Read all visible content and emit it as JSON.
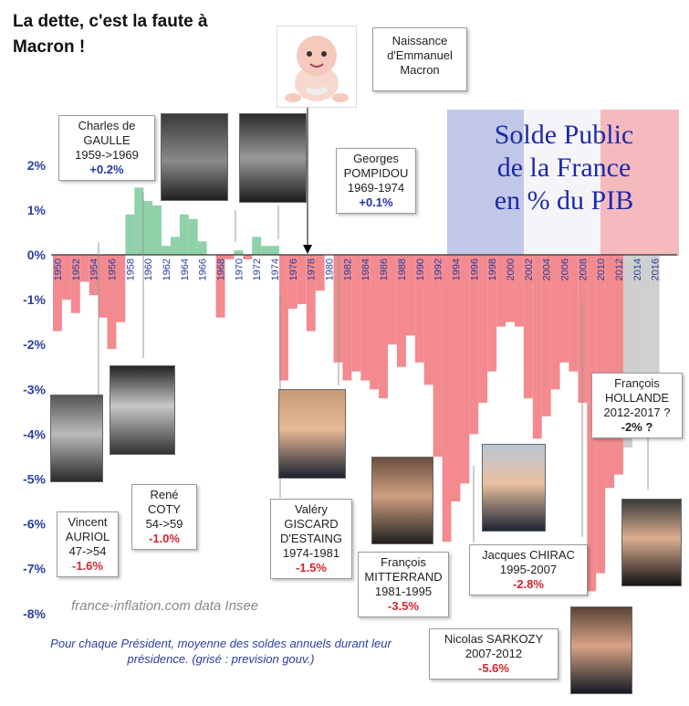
{
  "headline": "La dette, c'est la faute à Macron !",
  "flag_title": [
    "Solde Public",
    "de la France",
    "en % du PIB"
  ],
  "credit": "france-inflation.com  data Insee",
  "note": "Pour chaque Président, moyenne des soldes annuels durant leur présidence. (grisé : prevision gouv.)",
  "birth": {
    "lines": [
      "Naissance",
      "d'Emmanuel",
      "Macron"
    ],
    "year": 1977
  },
  "presidents": [
    {
      "id": "auriol",
      "lines": [
        "Vincent",
        "AURIOL",
        "47->54"
      ],
      "value": "-1.6%",
      "sign": "neg"
    },
    {
      "id": "coty",
      "lines": [
        "René",
        "COTY",
        "54->59"
      ],
      "value": "-1.0%",
      "sign": "neg"
    },
    {
      "id": "degaulle",
      "lines": [
        "Charles de",
        "GAULLE",
        "1959->1969"
      ],
      "value": "+0.2%",
      "sign": "pos"
    },
    {
      "id": "pompidou",
      "lines": [
        "Georges",
        "POMPIDOU",
        "1969-1974"
      ],
      "value": "+0.1%",
      "sign": "pos"
    },
    {
      "id": "giscard",
      "lines": [
        "Valéry",
        "GISCARD",
        "D'ESTAING",
        "1974-1981"
      ],
      "value": "-1.5%",
      "sign": "neg"
    },
    {
      "id": "mitterrand",
      "lines": [
        "François",
        "MITTERRAND",
        "1981-1995"
      ],
      "value": "-3.5%",
      "sign": "neg"
    },
    {
      "id": "chirac",
      "lines": [
        "Jacques CHIRAC",
        "1995-2007"
      ],
      "value": "-2.8%",
      "sign": "neg"
    },
    {
      "id": "sarkozy",
      "lines": [
        "Nicolas SARKOZY",
        "2007-2012"
      ],
      "value": "-5.6%",
      "sign": "neg"
    },
    {
      "id": "hollande",
      "lines": [
        "François",
        "HOLLANDE",
        "2012-2017 ?"
      ],
      "value": "-2% ?",
      "sign": "plain"
    }
  ],
  "colors": {
    "positive": "#8fd1a9",
    "negative": "#f28a8f",
    "forecast": "#cfcfcf",
    "axis_text": "#2a3fa0"
  },
  "chart_data": {
    "type": "bar",
    "title": "Solde Public de la France en % du PIB",
    "ylabel": "",
    "xlabel": "",
    "ylim": [
      -8,
      2.5
    ],
    "yticks": [
      "2%",
      "1%",
      "0%",
      "-1%",
      "-2%",
      "-3%",
      "-4%",
      "-5%",
      "-6%",
      "-7%",
      "-8%"
    ],
    "xticks": [
      "1950",
      "1952",
      "1954",
      "1956",
      "1958",
      "1960",
      "1962",
      "1964",
      "1966",
      "1968",
      "1970",
      "1972",
      "1974",
      "1976",
      "1978",
      "1980",
      "1982",
      "1984",
      "1986",
      "1988",
      "1990",
      "1992",
      "1994",
      "1996",
      "1998",
      "2000",
      "2002",
      "2004",
      "2006",
      "2008",
      "2010",
      "2012",
      "2014",
      "2016"
    ],
    "categories": [
      1950,
      1951,
      1952,
      1953,
      1954,
      1955,
      1956,
      1957,
      1958,
      1959,
      1960,
      1961,
      1962,
      1963,
      1964,
      1965,
      1966,
      1967,
      1968,
      1969,
      1970,
      1971,
      1972,
      1973,
      1974,
      1975,
      1976,
      1977,
      1978,
      1979,
      1980,
      1981,
      1982,
      1983,
      1984,
      1985,
      1986,
      1987,
      1988,
      1989,
      1990,
      1991,
      1992,
      1993,
      1994,
      1995,
      1996,
      1997,
      1998,
      1999,
      2000,
      2001,
      2002,
      2003,
      2004,
      2005,
      2006,
      2007,
      2008,
      2009,
      2010,
      2011,
      2012,
      2013,
      2014,
      2015,
      2016
    ],
    "values": [
      -1.7,
      -1.0,
      -1.3,
      -0.6,
      -0.9,
      -1.4,
      -2.1,
      -1.5,
      0.9,
      1.5,
      1.2,
      1.1,
      0.2,
      0.4,
      0.9,
      0.8,
      0.3,
      0.0,
      -1.4,
      -0.1,
      0.1,
      -0.1,
      0.4,
      0.2,
      0.2,
      -2.8,
      -1.2,
      -1.1,
      -1.7,
      -0.8,
      0.0,
      -2.4,
      -2.8,
      -2.6,
      -2.8,
      -3.0,
      -3.2,
      -2.0,
      -2.5,
      -1.8,
      -2.4,
      -2.9,
      -4.5,
      -6.4,
      -5.5,
      -5.1,
      -4.0,
      -3.3,
      -2.6,
      -1.6,
      -1.5,
      -1.6,
      -3.2,
      -4.1,
      -3.6,
      -3.0,
      -2.4,
      -2.6,
      -3.3,
      -7.5,
      -7.1,
      -5.2,
      -4.9,
      -4.3,
      -4.0,
      -3.5,
      -3.3
    ],
    "forecast_from": 2013
  }
}
